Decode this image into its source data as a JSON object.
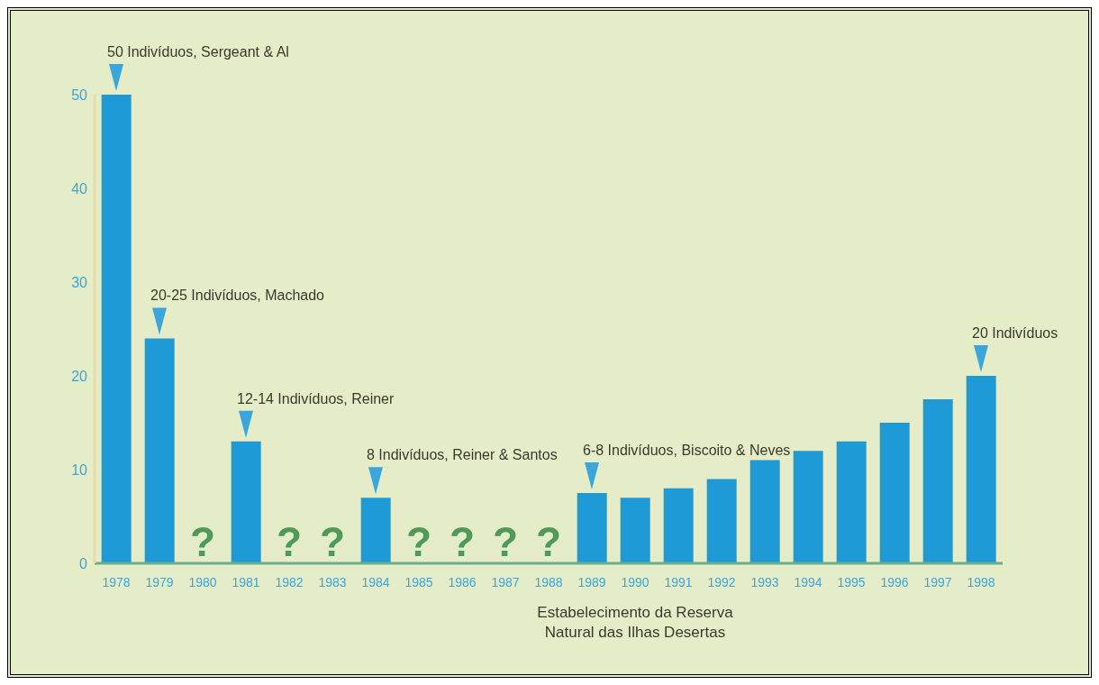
{
  "chart_data": {
    "type": "bar",
    "categories": [
      "1978",
      "1979",
      "1980",
      "1981",
      "1982",
      "1983",
      "1984",
      "1985",
      "1986",
      "1987",
      "1988",
      "1989",
      "1990",
      "1991",
      "1992",
      "1993",
      "1994",
      "1995",
      "1996",
      "1997",
      "1998"
    ],
    "values": [
      50,
      24,
      null,
      13,
      null,
      null,
      7,
      null,
      null,
      null,
      null,
      7.5,
      7,
      8,
      9,
      11,
      12,
      13,
      15,
      17.5,
      20
    ],
    "value_labels": [
      null,
      null,
      "?",
      null,
      "?",
      "?",
      null,
      "?",
      "?",
      "?",
      "?",
      null,
      null,
      null,
      null,
      null,
      null,
      null,
      null,
      null,
      null
    ],
    "color": "#1e9ad6",
    "ylim": [
      0,
      50
    ],
    "yticks": [
      0,
      10,
      20,
      30,
      40,
      50
    ],
    "grid": false,
    "legend": false,
    "annotations": [
      {
        "text": "50 Indivíduos, Sergeant & Al",
        "x": "1978",
        "y": 50
      },
      {
        "text": "20-25 Indivíduos, Machado",
        "x": "1979",
        "y": 24
      },
      {
        "text": "12-14 Indivíduos, Reiner",
        "x": "1981",
        "y": 13
      },
      {
        "text": "8 Indivíduos, Reiner & Santos",
        "x": "1984",
        "y": 7
      },
      {
        "text": "6-8 Indivíduos, Biscoito & Neves",
        "x": "1989",
        "y": 7.5
      },
      {
        "text": "20 Indivíduos",
        "x": "1998",
        "y": 20
      },
      "Estabelecimento da Reserva Natural das Ilhas Desertas"
    ]
  }
}
